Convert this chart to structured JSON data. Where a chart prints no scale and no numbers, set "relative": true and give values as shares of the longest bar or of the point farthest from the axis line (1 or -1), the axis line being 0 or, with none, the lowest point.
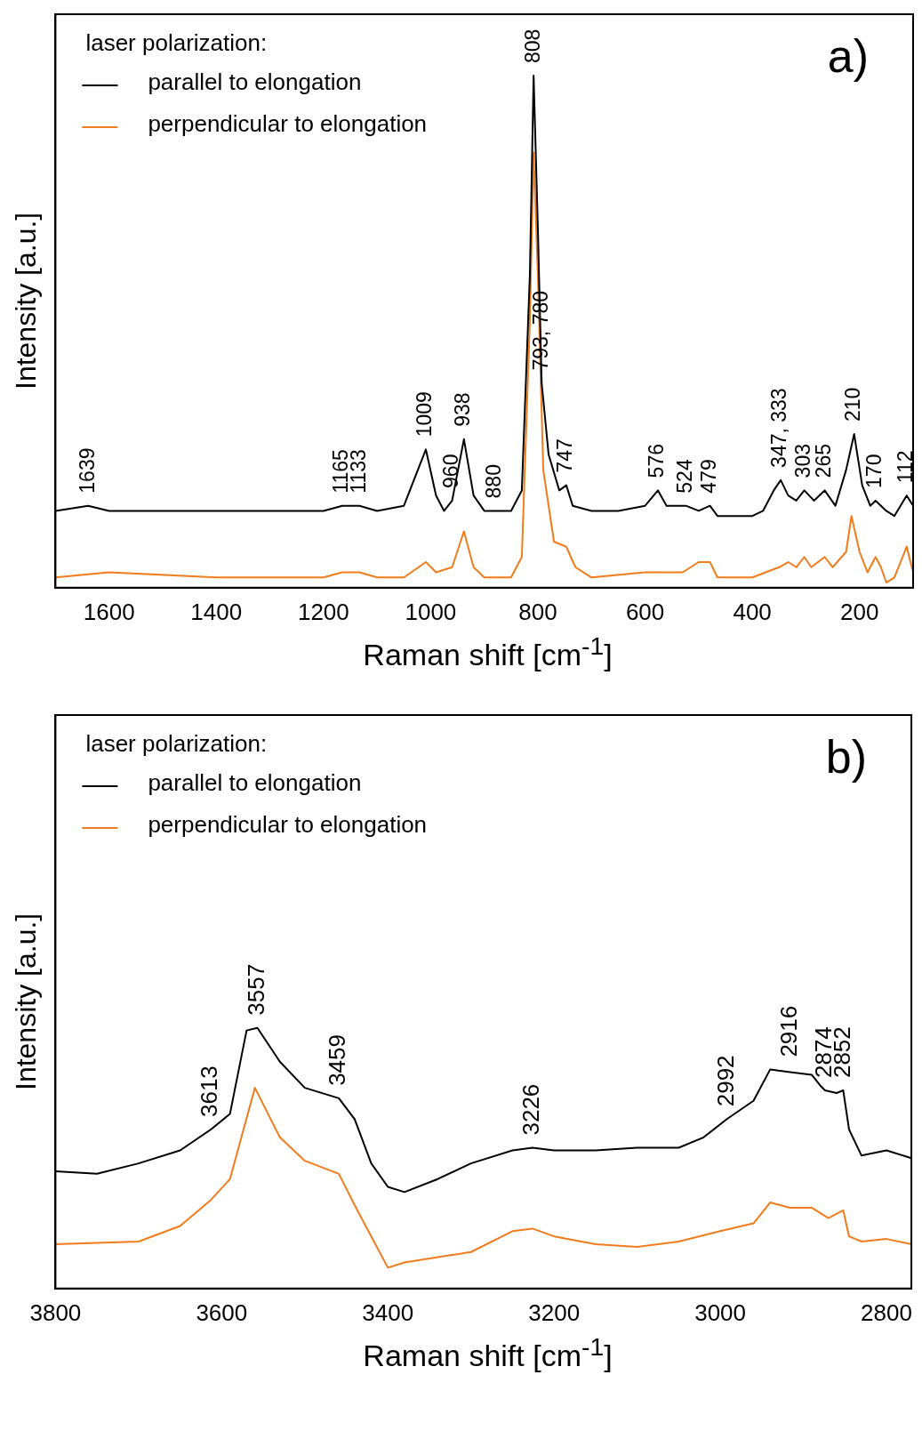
{
  "chart_data": [
    {
      "type": "line",
      "relative": true,
      "xlabel": "Raman shift [cm$^{-1}$]",
      "ylabel": "Intensity [a.u.]",
      "legend_title": "laser polarization:",
      "legend": "top left",
      "xlim": [
        1700,
        100
      ],
      "xticks": [
        1600,
        1400,
        1200,
        1000,
        800,
        600,
        400,
        200
      ],
      "series": [
        {
          "name": "parallel to elongation",
          "color": "#000000",
          "x": [
            1700,
            1639,
            1600,
            1400,
            1200,
            1165,
            1150,
            1133,
            1100,
            1050,
            1009,
            990,
            975,
            960,
            938,
            920,
            900,
            880,
            850,
            830,
            815,
            808,
            800,
            793,
            780,
            760,
            747,
            735,
            700,
            650,
            600,
            576,
            560,
            524,
            500,
            479,
            465,
            400,
            380,
            360,
            347,
            333,
            318,
            303,
            285,
            265,
            245,
            225,
            210,
            195,
            180,
            170,
            150,
            135,
            112,
            100
          ],
          "values": [
            0.15,
            0.16,
            0.15,
            0.15,
            0.15,
            0.16,
            0.16,
            0.16,
            0.15,
            0.16,
            0.27,
            0.18,
            0.15,
            0.17,
            0.29,
            0.18,
            0.15,
            0.15,
            0.15,
            0.19,
            0.61,
            1,
            0.7,
            0.4,
            0.26,
            0.19,
            0.2,
            0.16,
            0.15,
            0.15,
            0.16,
            0.19,
            0.16,
            0.16,
            0.15,
            0.16,
            0.14,
            0.14,
            0.15,
            0.19,
            0.21,
            0.18,
            0.17,
            0.19,
            0.17,
            0.19,
            0.16,
            0.23,
            0.3,
            0.2,
            0.16,
            0.17,
            0.15,
            0.14,
            0.18,
            0.16
          ]
        },
        {
          "name": "perpendicular to elongation",
          "color": "#f07c1c",
          "x": [
            1700,
            1600,
            1400,
            1300,
            1200,
            1165,
            1150,
            1133,
            1100,
            1050,
            1009,
            990,
            960,
            938,
            920,
            900,
            850,
            830,
            815,
            808,
            800,
            790,
            770,
            747,
            730,
            700,
            600,
            576,
            530,
            500,
            479,
            465,
            400,
            350,
            333,
            318,
            303,
            290,
            265,
            250,
            225,
            215,
            200,
            185,
            170,
            160,
            150,
            135,
            112,
            100
          ],
          "values": [
            0.02,
            0.03,
            0.02,
            0.02,
            0.02,
            0.03,
            0.03,
            0.03,
            0.02,
            0.02,
            0.05,
            0.03,
            0.04,
            0.11,
            0.04,
            0.02,
            0.02,
            0.06,
            0.52,
            0.85,
            0.61,
            0.23,
            0.09,
            0.08,
            0.04,
            0.02,
            0.03,
            0.03,
            0.03,
            0.05,
            0.05,
            0.02,
            0.02,
            0.04,
            0.05,
            0.04,
            0.06,
            0.04,
            0.06,
            0.04,
            0.07,
            0.14,
            0.07,
            0.03,
            0.06,
            0.04,
            0.01,
            0.02,
            0.08,
            0.03
          ]
        }
      ],
      "annotations": [
        "a)",
        {
          "text": "1639",
          "x": 1639,
          "y": 0.16
        },
        {
          "text": "1165",
          "x": 1165,
          "y": 0.16
        },
        {
          "text": "1133",
          "x": 1133,
          "y": 0.16
        },
        {
          "text": "1009",
          "x": 1009,
          "y": 0.27
        },
        {
          "text": "960",
          "x": 960,
          "y": 0.17
        },
        {
          "text": "938",
          "x": 938,
          "y": 0.29
        },
        {
          "text": "880",
          "x": 880,
          "y": 0.15
        },
        {
          "text": "808",
          "x": 808,
          "y": 1
        },
        {
          "text": "793, 780",
          "x": 793,
          "y": 0.4
        },
        {
          "text": "747",
          "x": 747,
          "y": 0.2
        },
        {
          "text": "576",
          "x": 576,
          "y": 0.19
        },
        {
          "text": "524",
          "x": 524,
          "y": 0.16
        },
        {
          "text": "479",
          "x": 479,
          "y": 0.16
        },
        {
          "text": "347, 333",
          "x": 347,
          "y": 0.21
        },
        {
          "text": "303",
          "x": 303,
          "y": 0.19
        },
        {
          "text": "265",
          "x": 265,
          "y": 0.19
        },
        {
          "text": "210",
          "x": 210,
          "y": 0.3
        },
        {
          "text": "170",
          "x": 170,
          "y": 0.17
        },
        {
          "text": "112",
          "x": 112,
          "y": 0.18
        }
      ]
    },
    {
      "type": "line",
      "relative": true,
      "xlabel": "Raman shift [cm$^{-1}$]",
      "ylabel": "Intensity [a.u.]",
      "legend_title": "laser polarization:",
      "legend": "top left",
      "xlim": [
        3800,
        2770
      ],
      "xticks": [
        3800,
        3600,
        3400,
        3200,
        3000,
        2800
      ],
      "series": [
        {
          "name": "parallel to elongation",
          "color": "#000000",
          "x": [
            3800,
            3750,
            3700,
            3650,
            3613,
            3590,
            3570,
            3557,
            3530,
            3500,
            3459,
            3440,
            3420,
            3400,
            3380,
            3340,
            3300,
            3250,
            3226,
            3200,
            3150,
            3100,
            3050,
            3020,
            2992,
            2960,
            2940,
            2916,
            2890,
            2880,
            2874,
            2860,
            2852,
            2845,
            2830,
            2800,
            2770
          ],
          "values": [
            0.45,
            0.44,
            0.48,
            0.53,
            0.61,
            0.67,
            0.99,
            1,
            0.87,
            0.77,
            0.73,
            0.65,
            0.48,
            0.39,
            0.37,
            0.42,
            0.48,
            0.53,
            0.54,
            0.53,
            0.53,
            0.54,
            0.54,
            0.58,
            0.65,
            0.72,
            0.84,
            0.83,
            0.82,
            0.78,
            0.76,
            0.75,
            0.76,
            0.61,
            0.51,
            0.53,
            0.5
          ]
        },
        {
          "name": "perpendicular to elongation",
          "color": "#f07c1c",
          "x": [
            3800,
            3700,
            3650,
            3613,
            3590,
            3560,
            3530,
            3500,
            3459,
            3440,
            3420,
            3400,
            3380,
            3300,
            3250,
            3226,
            3200,
            3150,
            3100,
            3050,
            3000,
            2960,
            2940,
            2916,
            2890,
            2870,
            2852,
            2845,
            2830,
            2800,
            2770
          ],
          "values": [
            0.17,
            0.18,
            0.24,
            0.34,
            0.42,
            0.77,
            0.58,
            0.49,
            0.44,
            0.32,
            0.2,
            0.08,
            0.1,
            0.14,
            0.22,
            0.23,
            0.2,
            0.17,
            0.16,
            0.18,
            0.22,
            0.25,
            0.33,
            0.31,
            0.31,
            0.27,
            0.3,
            0.2,
            0.18,
            0.19,
            0.17
          ]
        }
      ],
      "annotations": [
        "b)",
        {
          "text": "3613",
          "x": 3613,
          "y": 0.61
        },
        {
          "text": "3557",
          "x": 3557,
          "y": 1
        },
        {
          "text": "3459",
          "x": 3459,
          "y": 0.73
        },
        {
          "text": "3226",
          "x": 3226,
          "y": 0.54
        },
        {
          "text": "2992",
          "x": 2992,
          "y": 0.65
        },
        {
          "text": "2916",
          "x": 2916,
          "y": 0.84
        },
        {
          "text": "2874",
          "x": 2874,
          "y": 0.76
        },
        {
          "text": "2852",
          "x": 2852,
          "y": 0.76
        }
      ]
    }
  ]
}
